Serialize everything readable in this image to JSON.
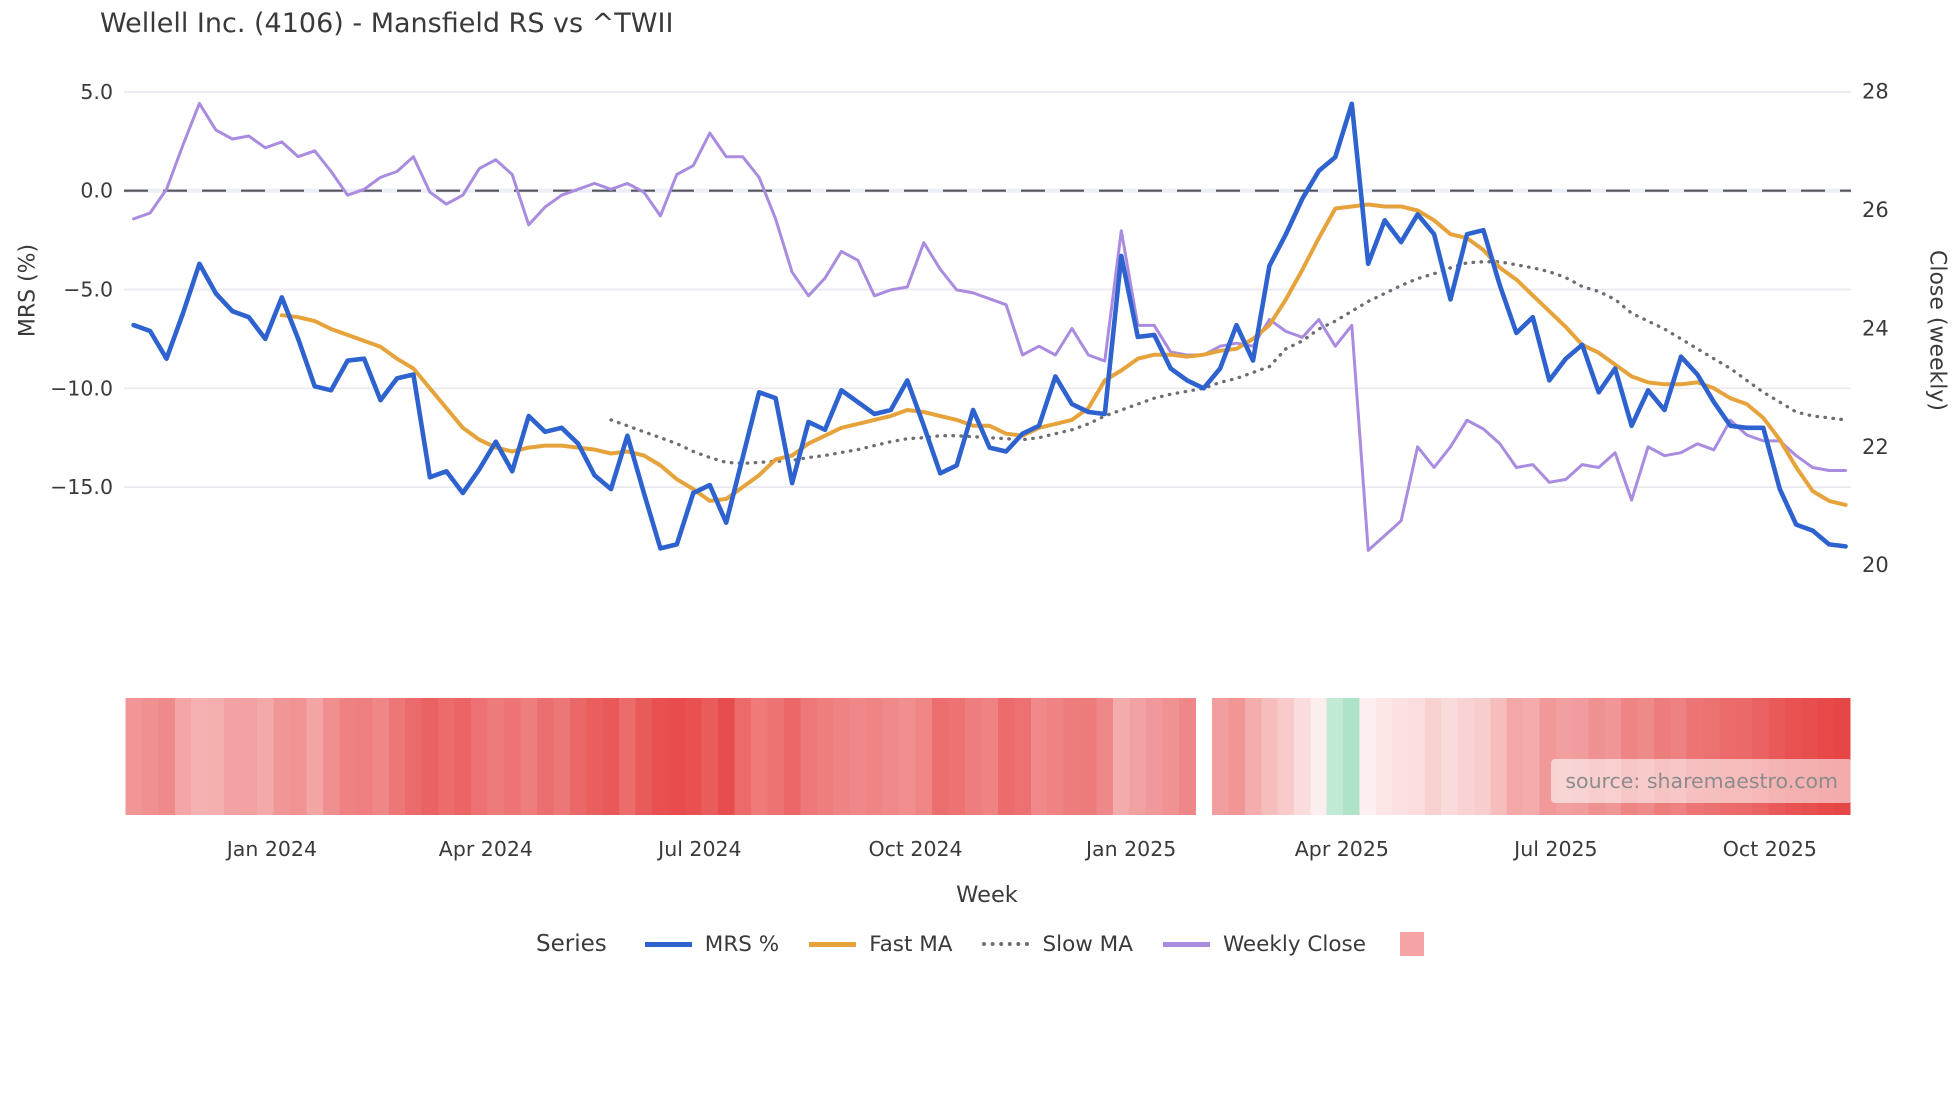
{
  "title": "Wellell Inc. (4106) - Mansfield RS vs ^TWII",
  "source": "source: sharemaestro.com",
  "axes": {
    "x_label": "Week",
    "left_label": "MRS (%)",
    "right_label": "Close (weekly)",
    "left_tick_labels": [
      "5.0",
      "0.0",
      "−5.0",
      "−10.0",
      "−15.0"
    ],
    "left_tick_values": [
      5,
      0,
      -5,
      -10,
      -15
    ],
    "right_tick_labels": [
      "28",
      "26",
      "24",
      "22",
      "20"
    ],
    "right_tick_values": [
      28,
      26,
      24,
      22,
      20
    ]
  },
  "legend": {
    "title": "Series",
    "swatch_color": "#f5a3a3"
  },
  "chart_data": {
    "type": "line",
    "title": "Wellell Inc. (4106) - Mansfield RS vs ^TWII",
    "xlabel": "Week",
    "ylabel_left": "MRS (%)",
    "ylabel_right": "Close (weekly)",
    "left_axis_ticks": [
      5.0,
      0.0,
      -5.0,
      -10.0,
      -15.0
    ],
    "right_axis_ticks": [
      28,
      26,
      24,
      22,
      20
    ],
    "zero_reference_line": 0,
    "x_ticks": [
      {
        "label": "Jan 2024",
        "week": 8.4
      },
      {
        "label": "Apr 2024",
        "week": 21.4
      },
      {
        "label": "Jul 2024",
        "week": 34.4
      },
      {
        "label": "Oct 2024",
        "week": 47.5
      },
      {
        "label": "Jan 2025",
        "week": 60.6
      },
      {
        "label": "Apr 2025",
        "week": 73.4
      },
      {
        "label": "Jul 2025",
        "week": 86.4
      },
      {
        "label": "Oct 2025",
        "week": 99.4
      }
    ],
    "series": [
      {
        "name": "MRS %",
        "axis": "left",
        "color": "#2e63cf",
        "style": "solid",
        "width": 4.6,
        "values": [
          -6.8,
          -7.1,
          -8.5,
          -6.2,
          -3.7,
          -5.2,
          -6.1,
          -6.4,
          -7.5,
          -5.4,
          -7.5,
          -9.9,
          -10.1,
          -8.6,
          -8.5,
          -10.6,
          -9.5,
          -9.3,
          -14.5,
          -14.2,
          -15.3,
          -14.1,
          -12.7,
          -14.2,
          -11.4,
          -12.2,
          -12.0,
          -12.8,
          -14.4,
          -15.1,
          -12.4,
          -15.3,
          -18.1,
          -17.9,
          -15.3,
          -14.9,
          -16.8,
          -13.5,
          -10.2,
          -10.5,
          -14.8,
          -11.7,
          -12.1,
          -10.1,
          -10.7,
          -11.3,
          -11.1,
          -9.6,
          -11.9,
          -14.3,
          -13.9,
          -11.1,
          -13.0,
          -13.2,
          -12.3,
          -11.9,
          -9.4,
          -10.8,
          -11.2,
          -11.3,
          -3.3,
          -7.4,
          -7.3,
          -9.0,
          -9.6,
          -10.0,
          -9.0,
          -6.8,
          -8.6,
          -3.8,
          -2.2,
          -0.4,
          1.0,
          1.7,
          4.4,
          -3.7,
          -1.5,
          -2.6,
          -1.2,
          -2.2,
          -5.5,
          -2.2,
          -2.0,
          -4.8,
          -7.2,
          -6.4,
          -9.6,
          -8.5,
          -7.8,
          -10.2,
          -9.0,
          -11.9,
          -10.1,
          -11.1,
          -8.4,
          -9.3,
          -10.7,
          -11.9,
          -12.0,
          -12.0,
          -15.1,
          -16.9,
          -17.2,
          -17.9,
          -18.0
        ]
      },
      {
        "name": "Fast MA",
        "axis": "left",
        "color": "#e6a33c",
        "style": "solid",
        "width": 4.0,
        "values": [
          null,
          null,
          null,
          null,
          null,
          null,
          null,
          null,
          null,
          -6.3,
          -6.4,
          -6.6,
          -7.0,
          -7.3,
          -7.6,
          -7.9,
          -8.5,
          -9.0,
          -10.0,
          -11.0,
          -12.0,
          -12.6,
          -13.0,
          -13.2,
          -13.0,
          -12.9,
          -12.9,
          -13.0,
          -13.1,
          -13.3,
          -13.2,
          -13.4,
          -13.9,
          -14.6,
          -15.1,
          -15.7,
          -15.6,
          -15.0,
          -14.4,
          -13.6,
          -13.4,
          -12.8,
          -12.4,
          -12.0,
          -11.8,
          -11.6,
          -11.4,
          -11.1,
          -11.2,
          -11.4,
          -11.6,
          -11.9,
          -11.9,
          -12.3,
          -12.4,
          -12.0,
          -11.8,
          -11.6,
          -11.0,
          -9.6,
          -9.1,
          -8.5,
          -8.3,
          -8.3,
          -8.4,
          -8.3,
          -8.1,
          -8.0,
          -7.5,
          -6.8,
          -5.5,
          -4.0,
          -2.4,
          -0.9,
          -0.8,
          -0.7,
          -0.8,
          -0.8,
          -1.0,
          -1.5,
          -2.2,
          -2.4,
          -3.0,
          -3.9,
          -4.5,
          -5.3,
          -6.1,
          -6.9,
          -7.8,
          -8.2,
          -8.8,
          -9.4,
          -9.7,
          -9.8,
          -9.8,
          -9.7,
          -10.0,
          -10.5,
          -10.8,
          -11.5,
          -12.6,
          -14.0,
          -15.2,
          -15.7,
          -15.9
        ]
      },
      {
        "name": "Slow MA",
        "axis": "left",
        "color": "#6d6d72",
        "style": "dotted",
        "width": 3.3,
        "values": [
          null,
          null,
          null,
          null,
          null,
          null,
          null,
          null,
          null,
          null,
          null,
          null,
          null,
          null,
          null,
          null,
          null,
          null,
          null,
          null,
          null,
          null,
          null,
          null,
          null,
          null,
          null,
          null,
          null,
          -11.6,
          -11.9,
          -12.2,
          -12.5,
          -12.8,
          -13.2,
          -13.5,
          -13.75,
          -13.8,
          -13.75,
          -13.7,
          -13.65,
          -13.5,
          -13.4,
          -13.25,
          -13.1,
          -12.9,
          -12.7,
          -12.55,
          -12.5,
          -12.4,
          -12.4,
          -12.45,
          -12.5,
          -12.55,
          -12.6,
          -12.5,
          -12.3,
          -12.1,
          -11.8,
          -11.4,
          -11.1,
          -10.8,
          -10.5,
          -10.3,
          -10.15,
          -10.0,
          -9.7,
          -9.5,
          -9.2,
          -8.9,
          -8.0,
          -7.6,
          -7.0,
          -6.6,
          -6.1,
          -5.6,
          -5.2,
          -4.8,
          -4.45,
          -4.2,
          -3.9,
          -3.65,
          -3.6,
          -3.6,
          -3.75,
          -3.9,
          -4.1,
          -4.4,
          -4.85,
          -5.1,
          -5.5,
          -6.2,
          -6.6,
          -7.0,
          -7.5,
          -8.0,
          -8.5,
          -9.0,
          -9.6,
          -10.2,
          -10.7,
          -11.2,
          -11.4,
          -11.5,
          -11.6
        ]
      },
      {
        "name": "Weekly Close",
        "axis": "right",
        "color": "#a98ce0",
        "style": "solid",
        "width": 3.0,
        "values": [
          25.85,
          25.95,
          26.35,
          27.1,
          27.8,
          27.35,
          27.2,
          27.25,
          27.05,
          27.15,
          26.9,
          27.0,
          26.65,
          26.25,
          26.35,
          26.55,
          26.65,
          26.9,
          26.3,
          26.1,
          26.25,
          26.7,
          26.85,
          26.6,
          25.75,
          26.05,
          26.25,
          26.35,
          26.45,
          26.35,
          26.45,
          26.3,
          25.9,
          26.6,
          26.75,
          27.3,
          26.9,
          26.9,
          26.55,
          25.85,
          24.95,
          24.55,
          24.85,
          25.3,
          25.15,
          24.55,
          24.65,
          24.7,
          25.45,
          25.0,
          24.65,
          24.6,
          24.5,
          24.4,
          23.55,
          23.7,
          23.55,
          24.0,
          23.55,
          23.45,
          25.65,
          24.05,
          24.05,
          23.6,
          23.55,
          23.55,
          23.7,
          23.75,
          23.7,
          24.15,
          23.95,
          23.85,
          24.15,
          23.7,
          24.05,
          20.25,
          20.5,
          20.75,
          22.0,
          21.65,
          22.0,
          22.45,
          22.3,
          22.05,
          21.65,
          21.7,
          21.4,
          21.45,
          21.7,
          21.65,
          21.9,
          21.1,
          22.0,
          21.85,
          21.9,
          22.05,
          21.95,
          22.45,
          22.2,
          22.1,
          22.1,
          21.85,
          21.65,
          21.6,
          21.6
        ]
      }
    ],
    "heatmap": {
      "left_colors": [
        "#f29596",
        "#f09091",
        "#ef8a8b",
        "#f4a6a7",
        "#f5b1b2",
        "#f5aeae",
        "#f3a2a3",
        "#f2a0a0",
        "#f4a9a9",
        "#f19697",
        "#f19293",
        "#f3a4a4",
        "#f08f90",
        "#ee8182",
        "#ee7e7f",
        "#ef8788",
        "#ed7677",
        "#eb6a6b",
        "#eb6263",
        "#ec6b6b",
        "#eb6565",
        "#ed7172",
        "#ee7b7b",
        "#ed7374",
        "#ee7d7d",
        "#ec6f6f",
        "#ed7677",
        "#eb6868",
        "#ea5e5e",
        "#e95959",
        "#ec6c6c",
        "#e95a5a",
        "#e84f4f",
        "#e84c4c",
        "#e95151",
        "#ea5b5b",
        "#e84d4d",
        "#ec6a6a",
        "#ee7a7a",
        "#ed7272",
        "#ec6868",
        "#ee7879",
        "#ee7d7d",
        "#ef8283",
        "#f08889",
        "#ef8484",
        "#f0898a",
        "#f18f8f",
        "#ef8585",
        "#ec6e6e",
        "#ed7272",
        "#ee7e7e",
        "#ef8283",
        "#ec6c6c",
        "#ed7172",
        "#f0898a",
        "#ef8283",
        "#ee7c7d",
        "#ee7b7b",
        "#ef8888",
        "#f4abab",
        "#f2a1a1",
        "#f1999a",
        "#f09192",
        "#ef8687"
      ],
      "right_colors": [
        "#f39e9e",
        "#f19595",
        "#f4adad",
        "#f6bdbd",
        "#f8caca",
        "#fbdcdc",
        "#fdeeee",
        "#c2e9d4",
        "#aee3c8",
        "#fdefef",
        "#fce6e6",
        "#fbe1e1",
        "#fbdddd",
        "#f9d1d1",
        "#fadbdb",
        "#f9d3d3",
        "#f8cdcd",
        "#f6bdbd",
        "#f3a7a7",
        "#f4abab",
        "#f19999",
        "#f29f9f",
        "#f29d9d",
        "#f09191",
        "#f19696",
        "#ee8484",
        "#ef8a8a",
        "#ed7c7c",
        "#ee8181",
        "#ec7474",
        "#ec7272",
        "#eb6b6b",
        "#eb6969",
        "#ea6363",
        "#e95959",
        "#e85252",
        "#e74e4e",
        "#e74949",
        "#e64646"
      ]
    }
  }
}
